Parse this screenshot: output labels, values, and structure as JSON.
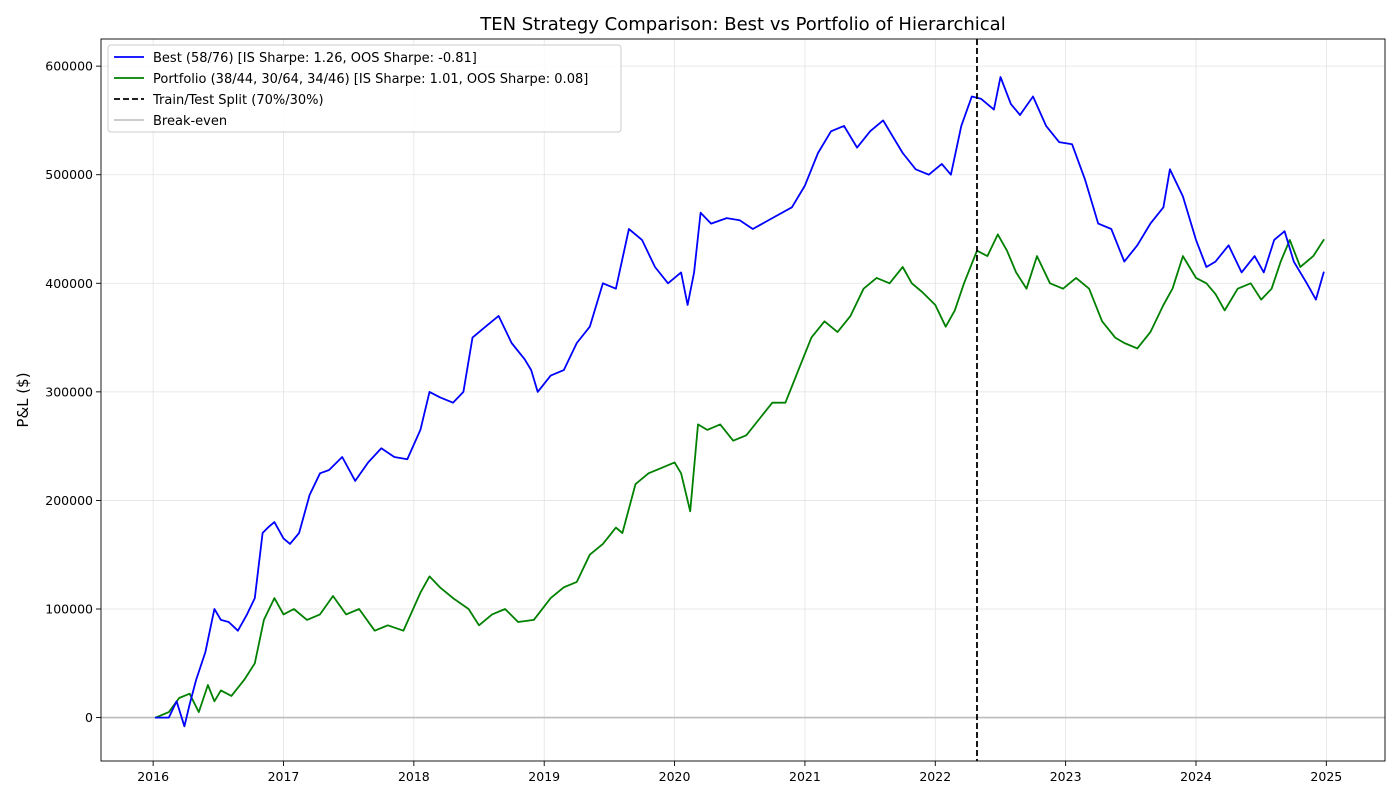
{
  "chart_data": {
    "type": "line",
    "title": "TEN Strategy Comparison: Best vs Portfolio of Hierarchical",
    "xlabel": "",
    "ylabel": "P&L ($)",
    "xlim": [
      2015.6,
      2025.45
    ],
    "ylim": [
      -40000,
      625000
    ],
    "x_ticks": [
      2016,
      2017,
      2018,
      2019,
      2020,
      2021,
      2022,
      2023,
      2024,
      2025
    ],
    "x_tick_labels": [
      "2016",
      "2017",
      "2018",
      "2019",
      "2020",
      "2021",
      "2022",
      "2023",
      "2024",
      "2025"
    ],
    "y_ticks": [
      0,
      100000,
      200000,
      300000,
      400000,
      500000,
      600000
    ],
    "y_tick_labels": [
      "0",
      "100000",
      "200000",
      "300000",
      "400000",
      "500000",
      "600000"
    ],
    "grid": true,
    "legend_position": "top-left",
    "split_x": 2022.32,
    "breakeven_y": 0,
    "series": [
      {
        "name": "Best (58/76) [IS Sharpe: 1.26, OOS Sharpe: -0.81]",
        "color": "#0000ff",
        "style": "solid",
        "x": [
          2016.02,
          2016.12,
          2016.18,
          2016.24,
          2016.28,
          2016.33,
          2016.4,
          2016.47,
          2016.52,
          2016.58,
          2016.65,
          2016.72,
          2016.78,
          2016.84,
          2016.88,
          2016.93,
          2017.0,
          2017.05,
          2017.12,
          2017.2,
          2017.28,
          2017.35,
          2017.45,
          2017.55,
          2017.65,
          2017.75,
          2017.85,
          2017.95,
          2018.05,
          2018.12,
          2018.2,
          2018.3,
          2018.38,
          2018.45,
          2018.55,
          2018.65,
          2018.75,
          2018.85,
          2018.9,
          2018.95,
          2019.05,
          2019.15,
          2019.25,
          2019.35,
          2019.45,
          2019.55,
          2019.65,
          2019.75,
          2019.85,
          2019.95,
          2020.05,
          2020.1,
          2020.15,
          2020.2,
          2020.28,
          2020.4,
          2020.5,
          2020.6,
          2020.75,
          2020.9,
          2021.0,
          2021.1,
          2021.2,
          2021.3,
          2021.4,
          2021.5,
          2021.6,
          2021.75,
          2021.85,
          2021.95,
          2022.05,
          2022.12,
          2022.2,
          2022.28,
          2022.35,
          2022.45,
          2022.5,
          2022.58,
          2022.65,
          2022.75,
          2022.85,
          2022.95,
          2023.05,
          2023.15,
          2023.25,
          2023.35,
          2023.45,
          2023.55,
          2023.65,
          2023.75,
          2023.8,
          2023.9,
          2024.0,
          2024.08,
          2024.15,
          2024.25,
          2024.35,
          2024.45,
          2024.52,
          2024.6,
          2024.68,
          2024.75,
          2024.85,
          2024.92,
          2024.98
        ],
        "y": [
          0,
          0,
          15000,
          -8000,
          12000,
          35000,
          60000,
          100000,
          90000,
          88000,
          80000,
          95000,
          110000,
          170000,
          175000,
          180000,
          165000,
          160000,
          170000,
          205000,
          225000,
          228000,
          240000,
          218000,
          235000,
          248000,
          240000,
          238000,
          265000,
          300000,
          295000,
          290000,
          300000,
          350000,
          360000,
          370000,
          345000,
          330000,
          320000,
          300000,
          315000,
          320000,
          345000,
          360000,
          400000,
          395000,
          450000,
          440000,
          415000,
          400000,
          410000,
          380000,
          410000,
          465000,
          455000,
          460000,
          458000,
          450000,
          460000,
          470000,
          490000,
          520000,
          540000,
          545000,
          525000,
          540000,
          550000,
          520000,
          505000,
          500000,
          510000,
          500000,
          545000,
          572000,
          570000,
          560000,
          590000,
          565000,
          555000,
          572000,
          545000,
          530000,
          528000,
          495000,
          455000,
          450000,
          420000,
          435000,
          455000,
          470000,
          505000,
          480000,
          440000,
          415000,
          420000,
          435000,
          410000,
          425000,
          410000,
          440000,
          448000,
          420000,
          400000,
          385000,
          410000
        ]
      },
      {
        "name": "Portfolio (38/44, 30/64, 34/46) [IS Sharpe: 1.01, OOS Sharpe: 0.08]",
        "color": "#008000",
        "style": "solid",
        "x": [
          2016.02,
          2016.12,
          2016.2,
          2016.28,
          2016.35,
          2016.42,
          2016.47,
          2016.52,
          2016.6,
          2016.7,
          2016.78,
          2016.85,
          2016.93,
          2017.0,
          2017.08,
          2017.18,
          2017.28,
          2017.38,
          2017.48,
          2017.58,
          2017.7,
          2017.8,
          2017.92,
          2018.05,
          2018.12,
          2018.2,
          2018.3,
          2018.42,
          2018.5,
          2018.6,
          2018.7,
          2018.8,
          2018.92,
          2019.05,
          2019.15,
          2019.25,
          2019.35,
          2019.45,
          2019.55,
          2019.6,
          2019.7,
          2019.8,
          2019.9,
          2020.0,
          2020.05,
          2020.12,
          2020.18,
          2020.25,
          2020.35,
          2020.45,
          2020.55,
          2020.65,
          2020.75,
          2020.85,
          2020.95,
          2021.05,
          2021.15,
          2021.25,
          2021.35,
          2021.45,
          2021.55,
          2021.65,
          2021.75,
          2021.82,
          2021.9,
          2022.0,
          2022.08,
          2022.15,
          2022.22,
          2022.32,
          2022.4,
          2022.48,
          2022.55,
          2022.62,
          2022.7,
          2022.78,
          2022.88,
          2022.98,
          2023.08,
          2023.18,
          2023.28,
          2023.38,
          2023.45,
          2023.55,
          2023.65,
          2023.75,
          2023.82,
          2023.9,
          2024.0,
          2024.08,
          2024.15,
          2024.22,
          2024.32,
          2024.42,
          2024.5,
          2024.58,
          2024.65,
          2024.72,
          2024.8,
          2024.9,
          2024.98
        ],
        "y": [
          0,
          5000,
          18000,
          22000,
          5000,
          30000,
          15000,
          25000,
          20000,
          35000,
          50000,
          90000,
          110000,
          95000,
          100000,
          90000,
          95000,
          112000,
          95000,
          100000,
          80000,
          85000,
          80000,
          115000,
          130000,
          120000,
          110000,
          100000,
          85000,
          95000,
          100000,
          88000,
          90000,
          110000,
          120000,
          125000,
          150000,
          160000,
          175000,
          170000,
          215000,
          225000,
          230000,
          235000,
          225000,
          190000,
          270000,
          265000,
          270000,
          255000,
          260000,
          275000,
          290000,
          290000,
          320000,
          350000,
          365000,
          355000,
          370000,
          395000,
          405000,
          400000,
          415000,
          400000,
          392000,
          380000,
          360000,
          375000,
          400000,
          430000,
          425000,
          445000,
          430000,
          410000,
          395000,
          425000,
          400000,
          395000,
          405000,
          395000,
          365000,
          350000,
          345000,
          340000,
          355000,
          380000,
          395000,
          425000,
          405000,
          400000,
          390000,
          375000,
          395000,
          400000,
          385000,
          395000,
          420000,
          440000,
          415000,
          425000,
          440000
        ]
      },
      {
        "name": "Train/Test Split (70%/30%)",
        "color": "#000000",
        "style": "dashed"
      },
      {
        "name": "Break-even",
        "color": "#bbbbbb",
        "style": "solid"
      }
    ]
  }
}
